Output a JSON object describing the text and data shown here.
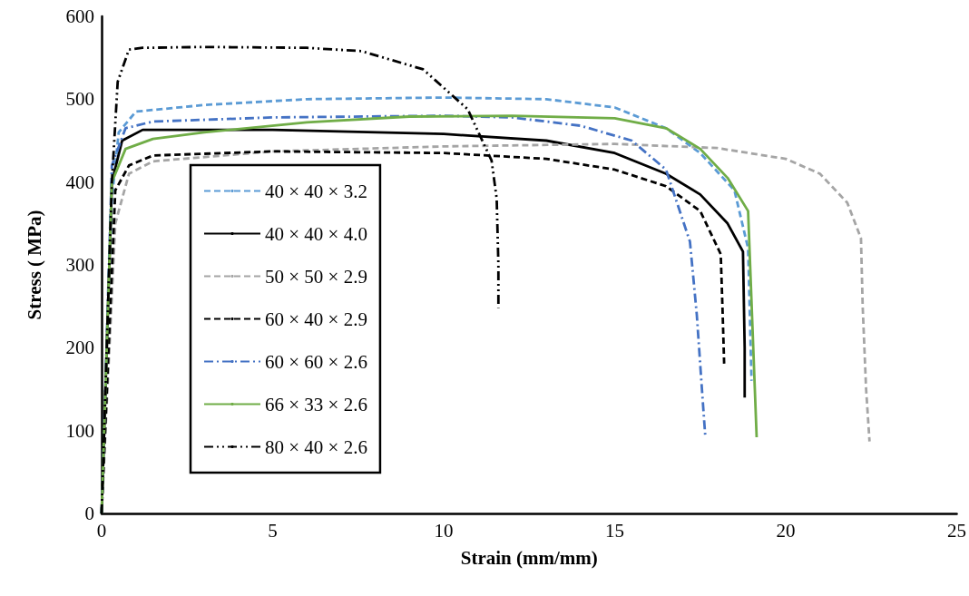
{
  "chart_data": {
    "type": "line",
    "xlabel": "Strain (mm/mm)",
    "ylabel": "Stress ( MPa)",
    "xlim": [
      0,
      25
    ],
    "xticks": [
      0,
      5,
      10,
      15,
      20,
      25
    ],
    "ylim": [
      0,
      600
    ],
    "yticks": [
      0,
      100,
      200,
      300,
      400,
      500,
      600
    ],
    "grid": false,
    "legend": "left",
    "marker": "none",
    "series": [
      {
        "name": "40 × 40 × 3.2",
        "color": "#5b9bd5",
        "line_style": "dashed",
        "x": [
          0,
          0.3,
          0.5,
          1,
          3,
          6,
          10,
          13,
          15,
          16.5,
          17.5,
          18.5,
          18.9,
          19.0
        ],
        "values": [
          0,
          380,
          460,
          485,
          493,
          500,
          502,
          500,
          490,
          465,
          435,
          390,
          320,
          160
        ]
      },
      {
        "name": "40 × 40 × 4.0",
        "color": "#000000",
        "line_style": "solid",
        "x": [
          0,
          0.3,
          0.6,
          1.2,
          5,
          10,
          13,
          15,
          16.5,
          17.5,
          18.3,
          18.75,
          18.8,
          18.8
        ],
        "values": [
          0,
          400,
          450,
          463,
          463,
          458,
          450,
          435,
          410,
          385,
          350,
          316,
          200,
          140
        ]
      },
      {
        "name": "50 × 50 × 2.9",
        "color": "#a5a5a5",
        "line_style": "dashed",
        "x": [
          0,
          0.4,
          0.8,
          1.5,
          5,
          10,
          15,
          18,
          20,
          21,
          21.8,
          22.2,
          22.25,
          22.35,
          22.45
        ],
        "values": [
          0,
          350,
          410,
          425,
          437,
          443,
          446,
          441,
          428,
          410,
          375,
          332,
          250,
          150,
          87
        ]
      },
      {
        "name": "60 × 40 × 2.9",
        "color": "#000000",
        "line_style": "dashed",
        "x": [
          0,
          0.4,
          0.8,
          1.5,
          5,
          10,
          13,
          15,
          16.5,
          17.5,
          18.1,
          18.15,
          18.2
        ],
        "values": [
          0,
          390,
          420,
          432,
          437,
          435,
          428,
          415,
          395,
          365,
          313,
          250,
          180
        ]
      },
      {
        "name": "60 × 60 × 2.6",
        "color": "#4472c4",
        "line_style": "dashdot",
        "x": [
          0,
          0.3,
          0.7,
          1.5,
          5,
          10,
          12,
          14,
          15.5,
          16.5,
          17.2,
          17.4,
          17.55,
          17.65
        ],
        "values": [
          0,
          420,
          465,
          473,
          478,
          480,
          478,
          468,
          450,
          415,
          328,
          240,
          150,
          92
        ]
      },
      {
        "name": "66 × 33 × 2.6",
        "color": "#70ad47",
        "line_style": "solid",
        "x": [
          0,
          0.3,
          0.7,
          1.5,
          3,
          6,
          9,
          12,
          15,
          16.5,
          17.5,
          18.3,
          18.9,
          19.15
        ],
        "values": [
          0,
          400,
          440,
          452,
          460,
          472,
          479,
          480,
          477,
          465,
          440,
          405,
          365,
          92
        ]
      },
      {
        "name": "80 × 40 × 2.6",
        "color": "#000000",
        "line_style": "dashdotdot",
        "x": [
          0,
          0.3,
          0.47,
          0.8,
          1.2,
          3,
          6,
          7.6,
          9.4,
          10.7,
          11.4,
          11.55,
          11.6,
          11.6
        ],
        "values": [
          0,
          400,
          521,
          560,
          562,
          563,
          562,
          558,
          536,
          488,
          426,
          380,
          300,
          248
        ]
      }
    ]
  }
}
